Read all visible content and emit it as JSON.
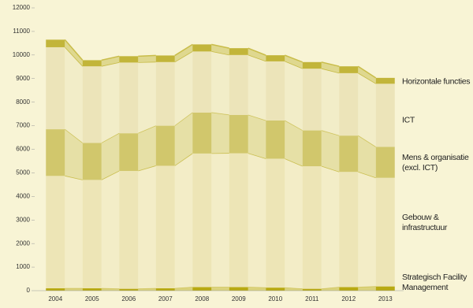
{
  "chart_data": {
    "type": "stacked-bar",
    "categories": [
      "2004",
      "2005",
      "2006",
      "2007",
      "2008",
      "2009",
      "2010",
      "2011",
      "2012",
      "2013"
    ],
    "series": [
      {
        "name": "Strategisch Facility Management",
        "color": "#b8aa12",
        "values": [
          100,
          100,
          80,
          100,
          150,
          150,
          130,
          80,
          150,
          180
        ]
      },
      {
        "name": "Gebouw & infrastructuur",
        "color": "#ede5b6",
        "values": [
          4770,
          4600,
          5000,
          5200,
          5670,
          5680,
          5470,
          5200,
          4890,
          4610
        ]
      },
      {
        "name": "Mens & organisatie (excl. ICT)",
        "color": "#d1c76c",
        "values": [
          1980,
          1570,
          1600,
          1700,
          1740,
          1630,
          1620,
          1520,
          1540,
          1310
        ]
      },
      {
        "name": "ICT",
        "color": "#ece4b9",
        "values": [
          3480,
          3250,
          3000,
          2700,
          2590,
          2540,
          2510,
          2620,
          2650,
          2680
        ]
      },
      {
        "name": "Horizontale functies",
        "color": "#c2b53a",
        "values": [
          320,
          260,
          270,
          280,
          300,
          290,
          260,
          280,
          290,
          250
        ]
      }
    ],
    "ylim": [
      0,
      12000
    ],
    "yticks": [
      0,
      1000,
      2000,
      3000,
      4000,
      5000,
      6000,
      7000,
      8000,
      9000,
      10000,
      11000,
      12000
    ]
  }
}
